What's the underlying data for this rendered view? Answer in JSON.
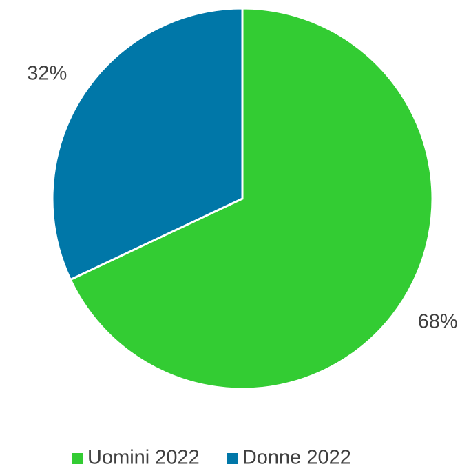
{
  "chart_data": {
    "type": "pie",
    "categories": [
      "Uomini 2022",
      "Donne 2022"
    ],
    "values": [
      68,
      32
    ],
    "value_labels": [
      "68%",
      "32%"
    ],
    "colors": [
      "#33cc33",
      "#0077a8"
    ],
    "legend": "bottom"
  }
}
